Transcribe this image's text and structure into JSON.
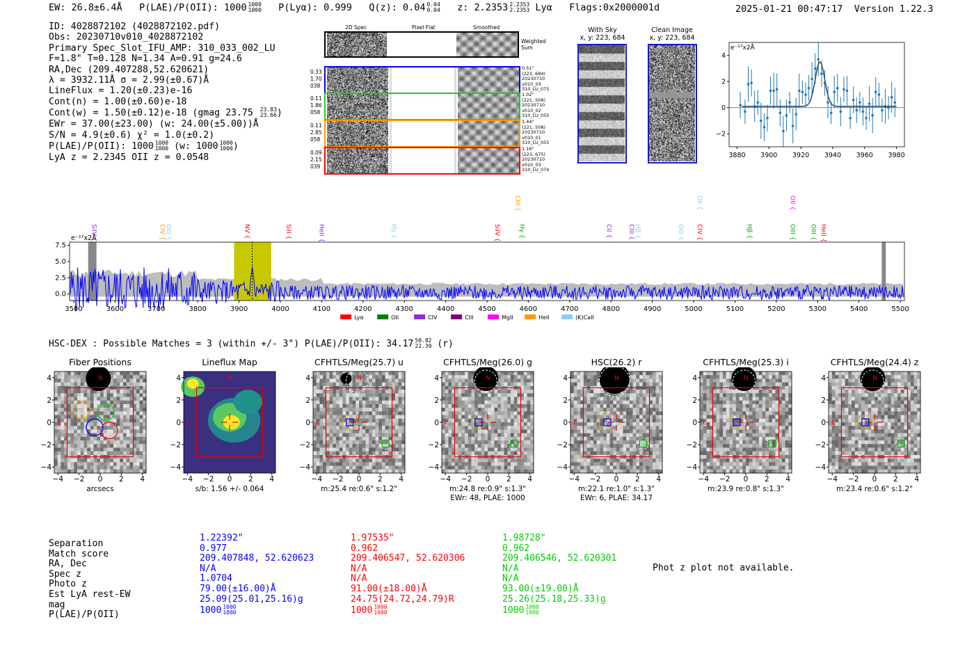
{
  "header": {
    "ew": "EW: 26.8±6.4Å",
    "plae_label": "P(LAE)/P(OII): 1000",
    "plae_hi": "1000",
    "plae_lo": "1000",
    "plya": "P(Lyα): 0.999",
    "qz_label": "Q(z): 0.04",
    "qz_hi": "0.04",
    "qz_lo": "0.04",
    "z_label": "z: 2.2353",
    "z_hi": "2.2353",
    "z_lo": "2.2353",
    "z_line": "Lyα",
    "flags": "Flags:0x2000001d",
    "datetime": "2025-01-21 00:47:17",
    "version": "Version 1.22.3"
  },
  "info": {
    "id": "ID: 4028872102 (4028872102.pdf)",
    "obs": "Obs: 20230710v010_4028872102",
    "primary": "Primary Spec_Slot_IFU_AMP: 310_033_002_LU",
    "fparams": "F=1.8\"  T=0.128  N=1.34  A=0.91  g=24.6",
    "radec": "RA,Dec (209.407288,52.620621)",
    "lambda": "λ = 3932.11Å  σ = 2.99(±0.67)Å",
    "lineflux": "LineFlux = 1.20(±0.23)e-16",
    "contn": "Cont(n) = 1.00(±0.60)e-18",
    "contw": "Cont(w) = 1.50(±0.12)e-18 (gmag 23.75",
    "contw_hi": "23.83",
    "contw_lo": "23.66",
    "contw_end": ")",
    "ewr": "EWr = 37.00(±23.00) (w: 24.00(±5.00))Å",
    "sn": "S/N = 4.9(±0.6)  χ² = 1.0(±0.2)",
    "plae": "P(LAE)/P(OII): 1000",
    "plae_hi": "1000",
    "plae_lo": "1000",
    "plae_w": "(w: 1000",
    "plae_w_hi": "1000",
    "plae_w_lo": "1000",
    "plae_w_end": ")",
    "lyaz": "LyA z = 2.2345  OII z = 0.0548"
  },
  "fibers": {
    "col_2d": "2D Spec",
    "col_flat": "Pixel Flat",
    "col_smooth": "Smoothed",
    "weighted_label_1": "Weighted",
    "weighted_label_2": "Sum",
    "rows": [
      {
        "left": [
          "0.33",
          "1.70",
          "038"
        ],
        "right": [
          "0.51\"",
          "(223, 684)",
          "20230710",
          "v010_03",
          "310_LU_075"
        ],
        "color": "#0000ff"
      },
      {
        "left": [
          "0.11",
          "1.86",
          "058"
        ],
        "right": [
          "1.02\"",
          "(221, 508)",
          "20230710",
          "v010_02",
          "310_LU_055"
        ],
        "color": "#22cc22"
      },
      {
        "left": [
          "0.11",
          "2.85",
          "058"
        ],
        "right": [
          "1.44\"",
          "(221, 508)",
          "20230710",
          "v010_01",
          "310_LU_055"
        ],
        "color": "#ff9900"
      },
      {
        "left": [
          "0.09",
          "2.15",
          "039"
        ],
        "right": [
          "1.16\"",
          "(223, 675)",
          "20230710",
          "v010_03",
          "310_LU_074"
        ],
        "color": "#ff0000"
      }
    ]
  },
  "sky": {
    "with_sky_title": "With Sky",
    "with_sky_xy": "x, y: 223, 684",
    "clean_title": "Clean Image",
    "clean_xy": "x, y: 223, 684"
  },
  "zoom_plot": {
    "unit": "e⁻¹⁷x2Å",
    "xticks": [
      "3880",
      "3900",
      "3920",
      "3940",
      "3960",
      "3980"
    ],
    "yticks": [
      "4",
      "2",
      "0",
      "−2"
    ],
    "x": [
      3882,
      3885,
      3887,
      3889,
      3891,
      3893,
      3895,
      3897,
      3899,
      3901,
      3903,
      3905,
      3907,
      3909,
      3911,
      3913,
      3915,
      3917,
      3919,
      3921,
      3923,
      3925,
      3927,
      3929,
      3931,
      3933,
      3935,
      3937,
      3939,
      3941,
      3943,
      3945,
      3947,
      3949,
      3951,
      3953,
      3955,
      3957,
      3959,
      3961,
      3963,
      3965,
      3967,
      3969,
      3971,
      3973,
      3975,
      3977,
      3979
    ],
    "y": [
      0.2,
      -0.3,
      1.8,
      1.9,
      0.1,
      0.4,
      -1.0,
      -1.5,
      -0.8,
      1.3,
      1.3,
      1.4,
      -0.4,
      -1.8,
      -0.6,
      0.4,
      -1.4,
      -0.5,
      1.3,
      1.2,
      1.0,
      1.5,
      2.2,
      3.0,
      3.7,
      2.6,
      1.9,
      0.4,
      -0.4,
      1.2,
      1.5,
      -0.3,
      1.4,
      1.3,
      -0.8,
      0.6,
      -0.2,
      0.4,
      -0.3,
      -0.8,
      0.3,
      -0.6,
      1.2,
      1.0,
      -0.2,
      0.1,
      0.0,
      0.8,
      0.4
    ],
    "fit_peak": 3.4,
    "fit_center": 3932,
    "fit_sigma": 3.0,
    "fit_base": 0.1
  },
  "spectrum": {
    "unit": "e⁻¹⁷x2Å",
    "xticks": [
      "3500",
      "3600",
      "3700",
      "3800",
      "3900",
      "4000",
      "4100",
      "4200",
      "4300",
      "4400",
      "4500",
      "4600",
      "4700",
      "4800",
      "4900",
      "5000",
      "5100",
      "5200",
      "5300",
      "5400",
      "5500"
    ],
    "yticks": [
      "7.5",
      "5.0",
      "2.5",
      "0.0"
    ],
    "highlight_range": [
      3888,
      3978
    ],
    "highlight_center": 3932,
    "masked": [
      [
        3535,
        3555
      ],
      [
        5455,
        5465
      ]
    ],
    "lines_upper": [
      {
        "label": "SiIV",
        "color": "#8a2be2",
        "w": 3545
      },
      {
        "label": "CIV",
        "color": "#ff9900",
        "w": 3710
      },
      {
        "label": "OIII",
        "color": "#87cefa",
        "w": 3725
      },
      {
        "label": "NV",
        "color": "#ff0000",
        "w": 3915
      },
      {
        "label": "SiII",
        "color": "#ff0000",
        "w": 4015
      },
      {
        "label": "HeII",
        "color": "#8a2be2",
        "w": 4095
      },
      {
        "label": "Hγ",
        "color": "#87cefa",
        "w": 4270
      },
      {
        "label": "SiIV",
        "color": "#ff0000",
        "w": 4520
      },
      {
        "label": "Hγ",
        "color": "#00aa00",
        "w": 4580
      },
      {
        "label": "CII",
        "color": "#8a2be2",
        "w": 4790
      },
      {
        "label": "CIII",
        "color": "#8a2be2",
        "w": 4845
      },
      {
        "label": "Hβ",
        "color": "#87cefa",
        "w": 4860
      },
      {
        "label": "OIII",
        "color": "#87cefa",
        "w": 4965
      },
      {
        "label": "CIV",
        "color": "#ff0000",
        "w": 5010
      },
      {
        "label": "Hβ",
        "color": "#00aa00",
        "w": 5130
      },
      {
        "label": "OIII",
        "color": "#00aa00",
        "w": 5235
      },
      {
        "label": "OIII",
        "color": "#00aa00",
        "w": 5285
      },
      {
        "label": "HeII",
        "color": "#ff0000",
        "w": 5310
      }
    ],
    "lines_top": [
      {
        "label": "CIII",
        "color": "#ff9900",
        "w": 4570
      },
      {
        "label": "OII",
        "color": "#87cefa",
        "w": 5010
      },
      {
        "label": "OII",
        "color": "#ff00ff",
        "w": 5235
      }
    ],
    "legend": [
      {
        "label": "Lyα",
        "color": "#ff0000"
      },
      {
        "label": "OII",
        "color": "#008000"
      },
      {
        "label": "CIV",
        "color": "#8a2be2"
      },
      {
        "label": "CIII",
        "color": "#800080"
      },
      {
        "label": "MgII",
        "color": "#ff00ff"
      },
      {
        "label": "HeII",
        "color": "#ff9900"
      },
      {
        "label": "(K)CaII",
        "color": "#87cefa"
      }
    ]
  },
  "hsc": {
    "summary": "HSC-DEX : Possible Matches = 3 (within +/- 3\")  P(LAE)/P(OII): 34.17",
    "summary_hi": "50.82",
    "summary_lo": "22.39",
    "summary_end": "(r)"
  },
  "cutouts": [
    {
      "title": "Fiber Positions",
      "xlabel": "arcsecs",
      "sub": "",
      "type": "fiber"
    },
    {
      "title": "Lineflux Map",
      "xlabel": "s/b: 1.56 +/- 0.064",
      "sub": "",
      "type": "lineflux"
    },
    {
      "title": "CFHTLS/Meg(25.7) u",
      "xlabel": "m:25.4  re:0.6\"  s:1.2\"",
      "sub": "",
      "type": "band"
    },
    {
      "title": "CFHTLS/Meg(26.0) g",
      "xlabel": "m:24.8  re:0.9\"  s:1.3\"",
      "sub": "EWr: 48, PLAE: 1000",
      "type": "band"
    },
    {
      "title": "HSC(26.2) r",
      "xlabel": "m:22.1  re:1.0\"  s:1.3\"",
      "sub": "EWr: 6, PLAE: 34.17",
      "type": "band"
    },
    {
      "title": "CFHTLS/Meg(25.3) i",
      "xlabel": "m:23.9  re:0.8\"  s:1.3\"",
      "sub": "",
      "type": "band"
    },
    {
      "title": "CFHTLS/Meg(24.4) z",
      "xlabel": "m:23.4  re:0.6\"  s:1.2\"",
      "sub": "",
      "type": "band"
    }
  ],
  "cutout_axes": {
    "ticks": [
      "−4",
      "−2",
      "0",
      "2",
      "4"
    ],
    "north": "N",
    "east": "E"
  },
  "matches": {
    "labels": [
      "Separation",
      "Match score",
      "RA, Dec",
      "Spec z",
      "Photo z",
      "Est LyA rest-EW",
      "mag",
      "P(LAE)/P(OII)"
    ],
    "columns": [
      {
        "color": "blue",
        "values": [
          "1.22392\"",
          "0.977",
          "209.407848, 52.620623",
          "N/A",
          "1.0704",
          "79.00(±16.00)Å",
          "25.09(25.01,25.16)g"
        ],
        "plae": "1000",
        "plae_hi": "1000",
        "plae_lo": "1000"
      },
      {
        "color": "red",
        "values": [
          "1.97535\"",
          "0.962",
          "209.406547, 52.620306",
          "N/A",
          "N/A",
          "91.00(±18.00)Å",
          "24.75(24.72,24.79)R"
        ],
        "plae": "1000",
        "plae_hi": "1000",
        "plae_lo": "1000"
      },
      {
        "color": "green",
        "values": [
          "1.98728\"",
          "0.962",
          "209.406546, 52.620301",
          "N/A",
          "N/A",
          "93.00(±19.00)Å",
          "25.26(25.18,25.33)g"
        ],
        "plae": "1000",
        "plae_hi": "1000",
        "plae_lo": "1000"
      }
    ],
    "photz_note": "Phot z plot not available."
  }
}
